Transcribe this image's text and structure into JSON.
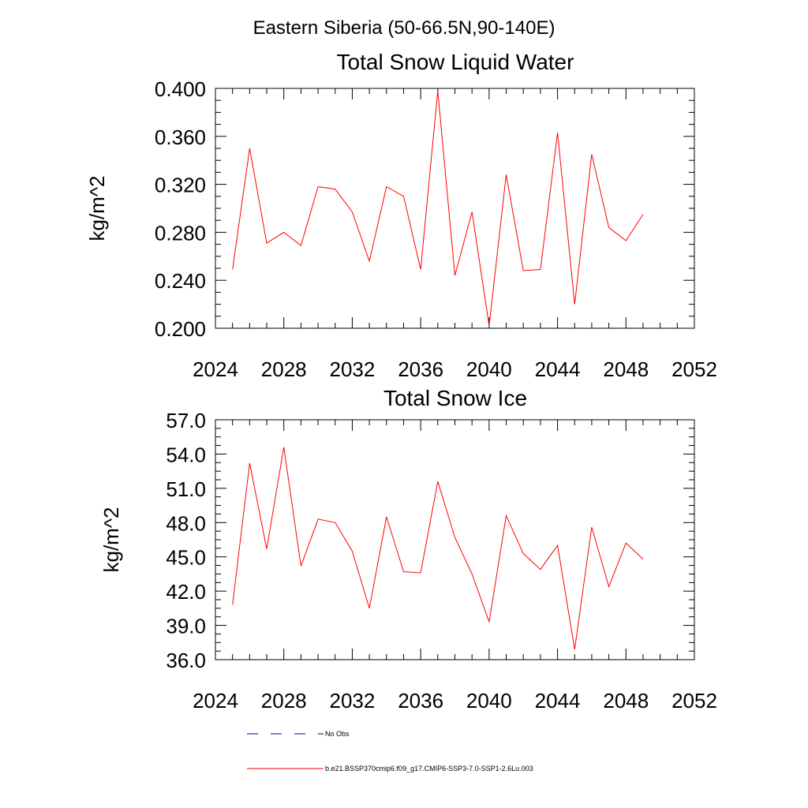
{
  "figure": {
    "suptitle": "Eastern Siberia (50-66.5N,90-140E)"
  },
  "chart_data": [
    {
      "type": "line",
      "title": "Total Snow Liquid Water",
      "ylabel": "kg/m^2",
      "xlabel": "",
      "xlim": [
        2024,
        2052
      ],
      "ylim": [
        0.2,
        0.4
      ],
      "xticks": [
        "2024",
        "2028",
        "2032",
        "2036",
        "2040",
        "2044",
        "2048",
        "2052"
      ],
      "yticks": [
        "0.200",
        "0.240",
        "0.280",
        "0.320",
        "0.360",
        "0.400"
      ],
      "series": [
        {
          "name": "b.e21.BSSP370cmip6.f09_g17.CMIP6-SSP3-7.0-SSP1-2.6Lu.003",
          "color": "#ff0000",
          "x": [
            2025,
            2026,
            2027,
            2028,
            2029,
            2030,
            2031,
            2032,
            2033,
            2034,
            2035,
            2036,
            2037,
            2038,
            2039,
            2040,
            2041,
            2042,
            2043,
            2044,
            2045,
            2046,
            2047,
            2048,
            2049
          ],
          "values": [
            0.249,
            0.35,
            0.271,
            0.28,
            0.269,
            0.318,
            0.316,
            0.297,
            0.256,
            0.318,
            0.31,
            0.249,
            0.398,
            0.244,
            0.297,
            0.202,
            0.328,
            0.248,
            0.249,
            0.363,
            0.22,
            0.345,
            0.284,
            0.273,
            0.295
          ]
        }
      ]
    },
    {
      "type": "line",
      "title": "Total Snow Ice",
      "ylabel": "kg/m^2",
      "xlabel": "",
      "xlim": [
        2024,
        2052
      ],
      "ylim": [
        36,
        57
      ],
      "xticks": [
        "2024",
        "2028",
        "2032",
        "2036",
        "2040",
        "2044",
        "2048",
        "2052"
      ],
      "yticks": [
        "36.0",
        "39.0",
        "42.0",
        "45.0",
        "48.0",
        "51.0",
        "54.0",
        "57.0"
      ],
      "series": [
        {
          "name": "b.e21.BSSP370cmip6.f09_g17.CMIP6-SSP3-7.0-SSP1-2.6Lu.003",
          "color": "#ff0000",
          "x": [
            2025,
            2026,
            2027,
            2028,
            2029,
            2030,
            2031,
            2032,
            2033,
            2034,
            2035,
            2036,
            2037,
            2038,
            2039,
            2040,
            2041,
            2042,
            2043,
            2044,
            2045,
            2046,
            2047,
            2048,
            2049
          ],
          "values": [
            40.8,
            53.2,
            45.7,
            54.6,
            44.2,
            48.3,
            48.0,
            45.5,
            40.5,
            48.5,
            43.7,
            43.6,
            51.6,
            46.7,
            43.5,
            39.3,
            48.6,
            45.3,
            43.9,
            46.0,
            36.9,
            47.6,
            42.4,
            46.2,
            44.8
          ]
        }
      ]
    }
  ],
  "legend": {
    "placement": "bottom-center",
    "items": [
      {
        "label": "No Obs",
        "style": "dashed",
        "color": "#000080"
      },
      {
        "label": "b.e21.BSSP370cmip6.f09_g17.CMIP6-SSP3-7.0-SSP1-2.6Lu.003",
        "style": "solid",
        "color": "#ff0000"
      }
    ]
  }
}
